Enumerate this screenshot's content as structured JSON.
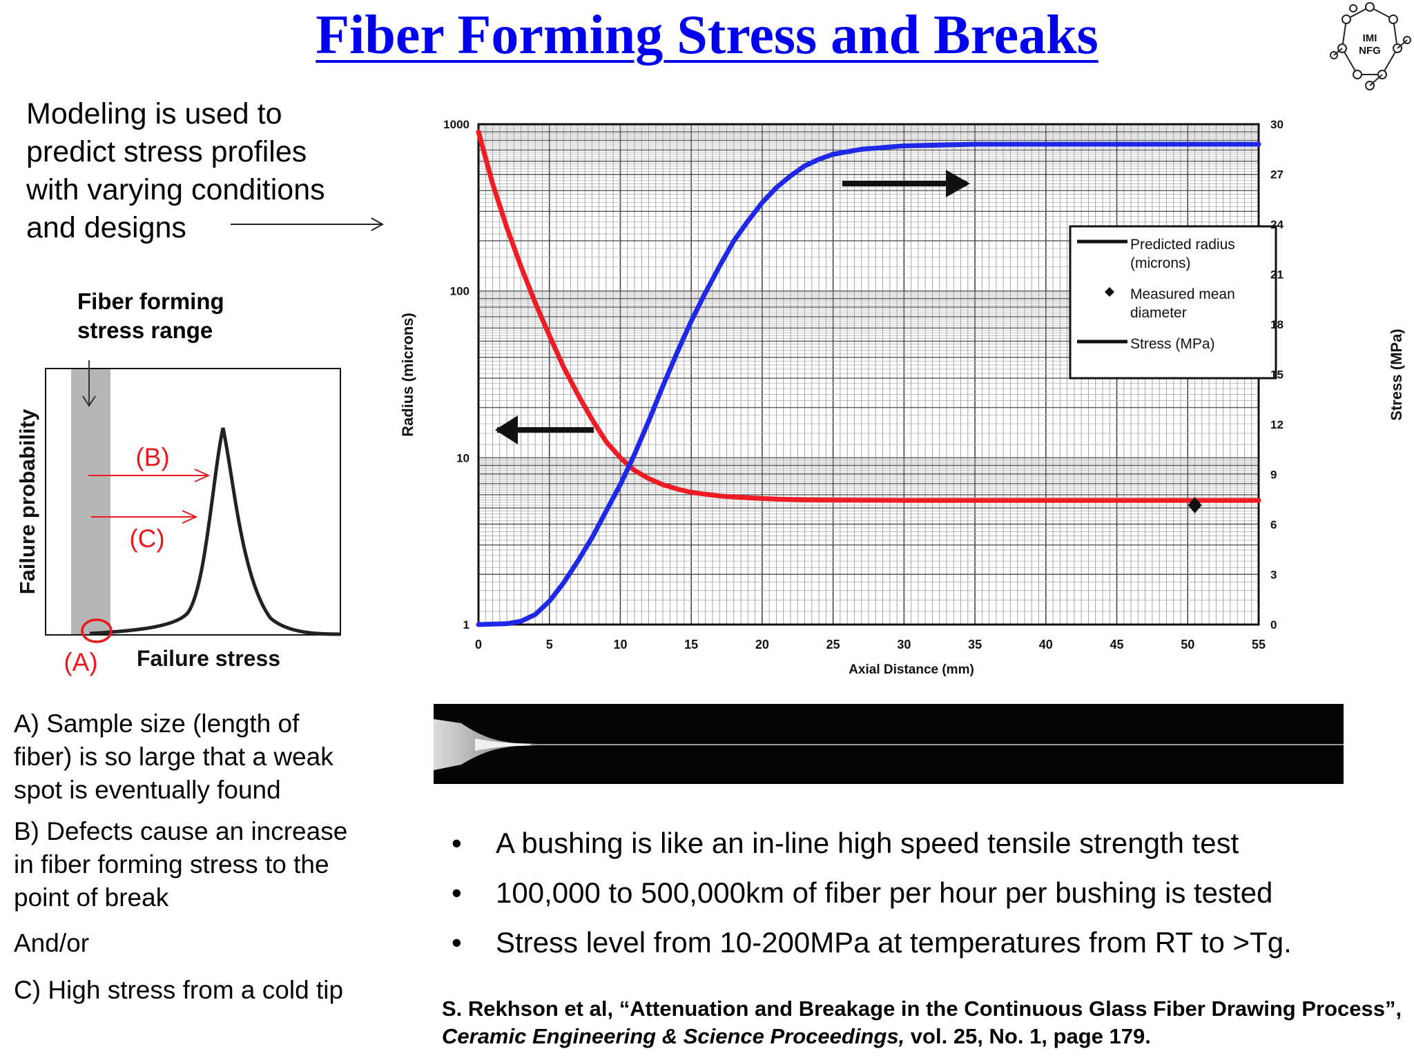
{
  "title": "Fiber Forming Stress and Breaks",
  "logo": {
    "line1": "IMI",
    "line2": "NFG"
  },
  "intro_text": "Modeling is used to\npredict stress profiles\nwith varying conditions\nand designs",
  "left_diagram": {
    "band_label": "Fiber forming\nstress range",
    "ylabel": "Failure probability",
    "xlabel": "Failure stress",
    "labels": [
      "(A)",
      "(B)",
      "(C)"
    ],
    "accent_color": "#e8191f",
    "band_color": "#b5b5b5"
  },
  "notes": {
    "a": "A) Sample size (length of\nfiber) is so large that a weak\nspot is eventually found",
    "b": "B) Defects cause an increase\nin fiber forming stress to the\npoint of break",
    "andor": "And/or",
    "c": "C) High stress from a cold tip"
  },
  "chart_data": {
    "type": "line",
    "xlabel": "Axial Distance (mm)",
    "ylabel_left": "Radius (microns)",
    "ylabel_right": "Stress (MPa)",
    "xlim": [
      0,
      55
    ],
    "ylim_left": [
      1,
      1000
    ],
    "yscale_left": "log",
    "ylim_right": [
      0,
      30
    ],
    "x_ticks": [
      "0",
      "5",
      "10",
      "15",
      "20",
      "25",
      "30",
      "35",
      "40",
      "45",
      "50",
      "55"
    ],
    "y_left_ticks": [
      "1",
      "10",
      "100",
      "1000"
    ],
    "y_right_ticks": [
      "0",
      "3",
      "6",
      "9",
      "12",
      "15",
      "18",
      "21",
      "24",
      "27",
      "30"
    ],
    "grid": true,
    "legend": {
      "position": "top-right",
      "entries": [
        "Predicted radius\n(microns)",
        "Measured mean\ndiameter",
        "Stress (MPa)"
      ]
    },
    "series": [
      {
        "name": "Predicted radius (microns)",
        "axis": "left",
        "color": "#ee1c24",
        "x": [
          0,
          1,
          2,
          3,
          4,
          5,
          6,
          7,
          8,
          9,
          10,
          11,
          12,
          13,
          14,
          15,
          17,
          19,
          21,
          23,
          25,
          30,
          40,
          50,
          55
        ],
        "values": [
          900,
          440,
          240,
          140,
          85,
          54,
          35,
          24,
          17,
          12.5,
          10,
          8.4,
          7.5,
          6.9,
          6.5,
          6.2,
          5.9,
          5.75,
          5.65,
          5.6,
          5.58,
          5.55,
          5.55,
          5.55,
          5.55
        ]
      },
      {
        "name": "Stress (MPa)",
        "axis": "right",
        "color": "#1f28e6",
        "x": [
          0,
          2,
          3,
          4,
          5,
          6,
          7,
          8,
          9,
          10,
          11,
          12,
          13,
          14,
          15,
          16,
          17,
          18,
          19,
          20,
          21,
          22,
          23,
          24,
          25,
          27,
          30,
          35,
          40,
          50,
          55
        ],
        "values": [
          0,
          0.05,
          0.2,
          0.6,
          1.4,
          2.5,
          3.8,
          5.2,
          6.8,
          8.4,
          10.2,
          12.2,
          14.3,
          16.3,
          18.2,
          19.9,
          21.5,
          23,
          24.2,
          25.3,
          26.2,
          26.9,
          27.5,
          27.9,
          28.2,
          28.5,
          28.7,
          28.8,
          28.8,
          28.8,
          28.8
        ]
      },
      {
        "name": "Measured mean diameter",
        "axis": "left",
        "marker": "diamond",
        "color": "#111111",
        "x": [
          50.5
        ],
        "values": [
          5.2
        ]
      }
    ]
  },
  "bullets": [
    "A bushing is like an in-line high speed tensile strength test",
    "100,000 to 500,000km of fiber per hour per bushing is tested",
    "Stress level from 10-200MPa at temperatures from RT to >Tg."
  ],
  "bullet_symbol": "•",
  "citation": {
    "part1": "S. Rekhson et al, “Attenuation and Breakage in the Continuous Glass Fiber Drawing Process”, ",
    "journal": "Ceramic Engineering & Science Proceedings,",
    "part2": " vol. 25, No. 1, page 179."
  }
}
